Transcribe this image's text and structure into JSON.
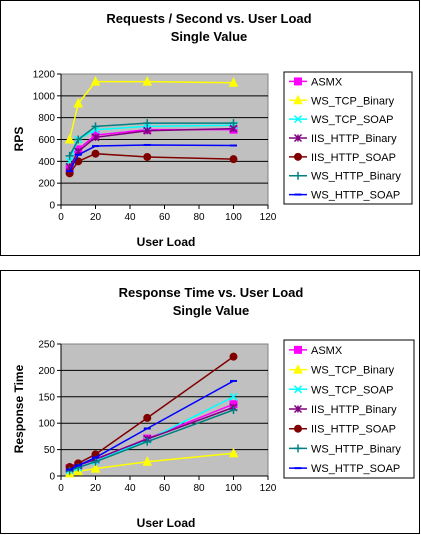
{
  "chart_data": [
    {
      "type": "line",
      "title": "Requests / Second  vs.  User Load",
      "subtitle": "Single Value",
      "xlabel": "User Load",
      "ylabel": "RPS",
      "xlim": [
        0,
        120
      ],
      "ylim": [
        0,
        1200
      ],
      "xticks": [
        0,
        20,
        40,
        60,
        80,
        100,
        120
      ],
      "yticks": [
        0,
        200,
        400,
        600,
        800,
        1000,
        1200
      ],
      "grid": "horizontal",
      "legend": "right",
      "series": [
        {
          "name": "ASMX",
          "color": "#ff00ff",
          "marker": "square",
          "x": [
            5,
            10,
            20,
            50,
            100
          ],
          "values": [
            330,
            510,
            640,
            690,
            690
          ]
        },
        {
          "name": "WS_TCP_Binary",
          "color": "#ffff00",
          "marker": "triangle",
          "x": [
            5,
            10,
            20,
            50,
            100
          ],
          "values": [
            600,
            930,
            1130,
            1130,
            1120
          ]
        },
        {
          "name": "WS_TCP_SOAP",
          "color": "#00ffff",
          "marker": "x",
          "x": [
            5,
            10,
            20,
            50,
            100
          ],
          "values": [
            400,
            600,
            690,
            720,
            730
          ]
        },
        {
          "name": "IIS_HTTP_Binary",
          "color": "#800080",
          "marker": "star",
          "x": [
            5,
            10,
            20,
            50,
            100
          ],
          "values": [
            350,
            490,
            620,
            680,
            700
          ]
        },
        {
          "name": "IIS_HTTP_SOAP",
          "color": "#800000",
          "marker": "circle",
          "x": [
            5,
            10,
            20,
            50,
            100
          ],
          "values": [
            290,
            400,
            470,
            440,
            420
          ]
        },
        {
          "name": "WS_HTTP_Binary",
          "color": "#008080",
          "marker": "plus",
          "x": [
            5,
            10,
            20,
            50,
            100
          ],
          "values": [
            450,
            600,
            720,
            750,
            750
          ]
        },
        {
          "name": "WS_HTTP_SOAP",
          "color": "#0000ff",
          "marker": "dash",
          "x": [
            5,
            10,
            20,
            50,
            100
          ],
          "values": [
            310,
            460,
            540,
            550,
            545
          ]
        }
      ]
    },
    {
      "type": "line",
      "title": "Response Time  vs.  User Load",
      "subtitle": "Single Value",
      "xlabel": "User Load",
      "ylabel": "Response Time",
      "xlim": [
        0,
        120
      ],
      "ylim": [
        0,
        250
      ],
      "xticks": [
        0,
        20,
        40,
        60,
        80,
        100,
        120
      ],
      "yticks": [
        0,
        50,
        100,
        150,
        200,
        250
      ],
      "grid": "horizontal",
      "legend": "right",
      "series": [
        {
          "name": "ASMX",
          "color": "#ff00ff",
          "marker": "square",
          "x": [
            5,
            10,
            20,
            50,
            100
          ],
          "values": [
            15,
            20,
            31,
            71,
            136
          ]
        },
        {
          "name": "WS_TCP_Binary",
          "color": "#ffff00",
          "marker": "triangle",
          "x": [
            5,
            10,
            20,
            50,
            100
          ],
          "values": [
            5,
            9,
            14,
            27,
            43
          ]
        },
        {
          "name": "WS_TCP_SOAP",
          "color": "#00ffff",
          "marker": "x",
          "x": [
            5,
            10,
            20,
            50,
            100
          ],
          "values": [
            11,
            16,
            28,
            68,
            150
          ]
        },
        {
          "name": "IIS_HTTP_Binary",
          "color": "#800080",
          "marker": "star",
          "x": [
            5,
            10,
            20,
            50,
            100
          ],
          "values": [
            14,
            20,
            32,
            70,
            130
          ]
        },
        {
          "name": "IIS_HTTP_SOAP",
          "color": "#800000",
          "marker": "circle",
          "x": [
            5,
            10,
            20,
            50,
            100
          ],
          "values": [
            17,
            24,
            41,
            110,
            226
          ]
        },
        {
          "name": "WS_HTTP_Binary",
          "color": "#008080",
          "marker": "plus",
          "x": [
            5,
            10,
            20,
            50,
            100
          ],
          "values": [
            10,
            16,
            27,
            65,
            125
          ]
        },
        {
          "name": "WS_HTTP_SOAP",
          "color": "#0000ff",
          "marker": "dash",
          "x": [
            5,
            10,
            20,
            50,
            100
          ],
          "values": [
            12,
            20,
            35,
            90,
            180
          ]
        }
      ]
    }
  ]
}
